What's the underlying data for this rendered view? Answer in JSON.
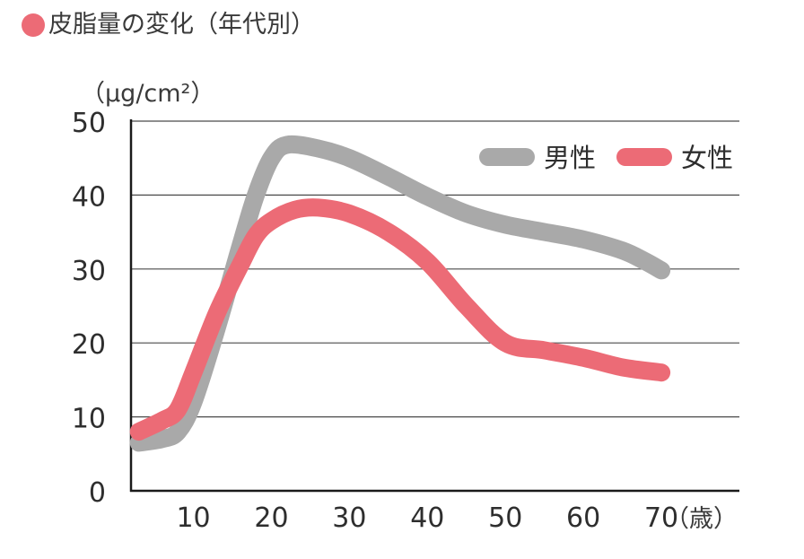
{
  "title": "皮脂量の変化（年代別）",
  "colors": {
    "title_dot": "#ec6b76",
    "male": "#a9a9a9",
    "female": "#ec6b76",
    "axis": "#1a1a1a",
    "grid": "#4a4a4a"
  },
  "chart_data": {
    "type": "line",
    "title": "皮脂量の変化（年代別）",
    "ylabel": "（μg/cm²）",
    "xlabel": "（歳）",
    "xlim": [
      2,
      80
    ],
    "ylim": [
      0,
      50
    ],
    "xticks": [
      10,
      20,
      30,
      40,
      50,
      60,
      70
    ],
    "yticks": [
      0,
      10,
      20,
      30,
      40,
      50
    ],
    "grid": true,
    "legend_position": "top-right",
    "series": [
      {
        "name": "男性",
        "color": "#a9a9a9",
        "x": [
          3,
          6,
          8,
          10,
          13,
          16,
          18,
          20,
          22,
          26,
          30,
          35,
          40,
          45,
          50,
          55,
          60,
          65,
          68,
          70
        ],
        "y": [
          6.5,
          7,
          8,
          12,
          22,
          33,
          40,
          45,
          46.8,
          46.3,
          45,
          42.5,
          39.8,
          37.5,
          36,
          35,
          34,
          32.5,
          31,
          29.8
        ]
      },
      {
        "name": "女性",
        "color": "#ec6b76",
        "x": [
          3,
          6,
          8,
          10,
          13,
          16,
          18,
          20,
          23,
          26,
          30,
          35,
          40,
          45,
          50,
          55,
          60,
          65,
          70
        ],
        "y": [
          8,
          9.5,
          11,
          16,
          24,
          30.5,
          34.5,
          36.5,
          38,
          38.3,
          37.5,
          35,
          31,
          25,
          20,
          19,
          18,
          16.7,
          16
        ]
      }
    ]
  }
}
